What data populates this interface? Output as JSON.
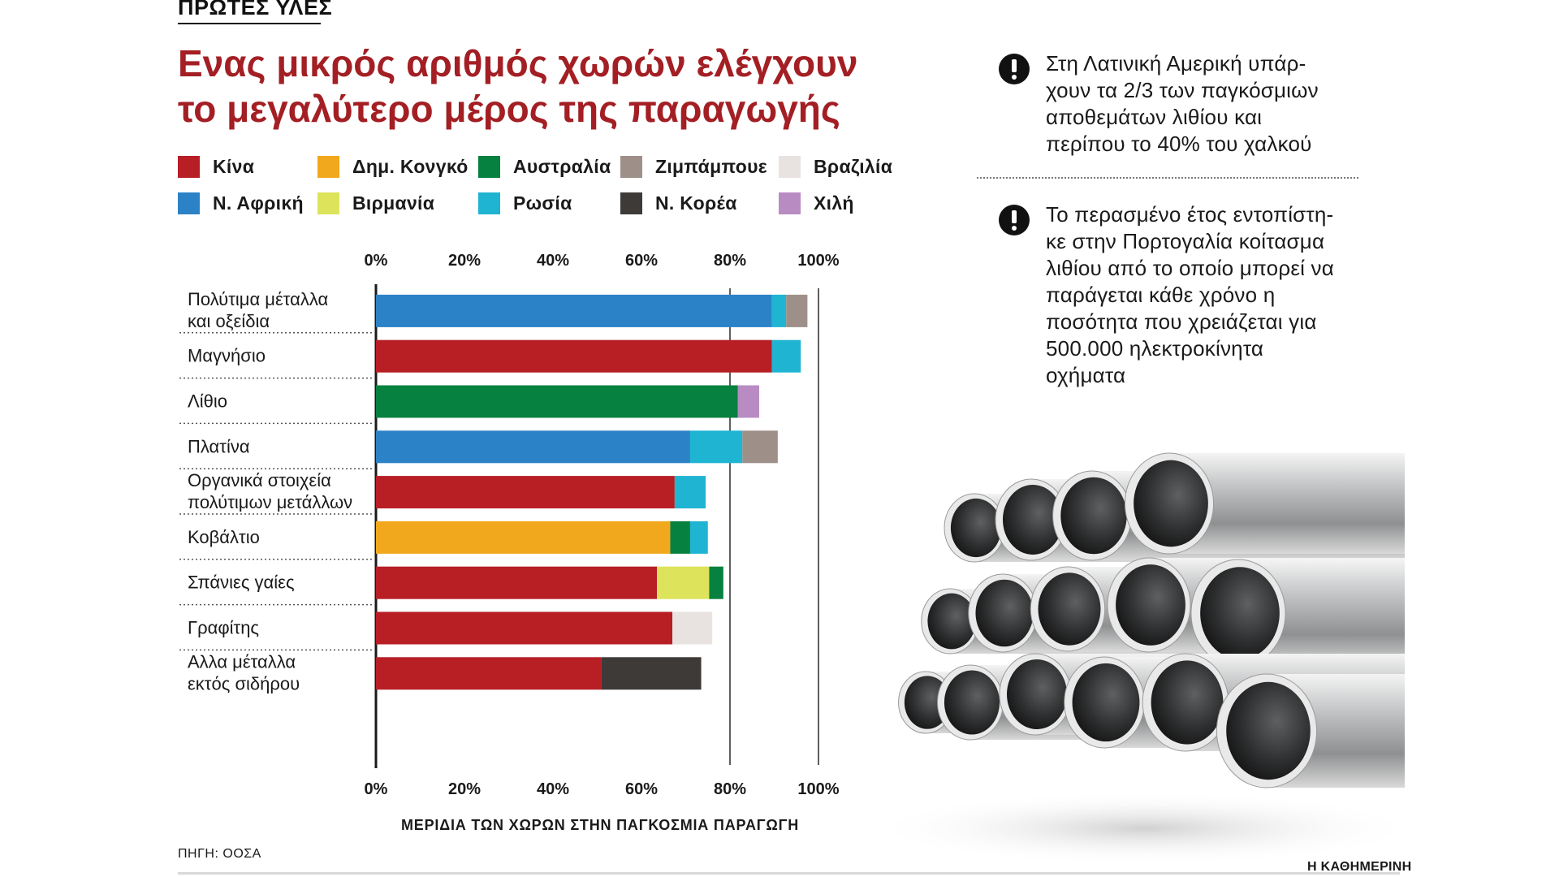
{
  "section_label": "ΠΡΩΤΕΣ ΥΛΕΣ",
  "headline": {
    "line1": "Ενας μικρός αριθμός χωρών ελέγχουν",
    "line2": "το μεγαλύτερο μέρος της παραγωγής"
  },
  "legend": [
    {
      "label": "Κίνα",
      "color": "#b71f25"
    },
    {
      "label": "Δημ. Κονγκό",
      "color": "#f2a81d"
    },
    {
      "label": "Αυστραλία",
      "color": "#07813f"
    },
    {
      "label": "Ζιμπάμπουε",
      "color": "#9e9089"
    },
    {
      "label": "Βραζιλία",
      "color": "#e8e3e1"
    },
    {
      "label": "Ν. Αφρική",
      "color": "#2c82c6"
    },
    {
      "label": "Βιρμανία",
      "color": "#dde35a"
    },
    {
      "label": "Ρωσία",
      "color": "#1fb4d2"
    },
    {
      "label": "Ν. Κορέα",
      "color": "#3d3a38"
    },
    {
      "label": "Χιλή",
      "color": "#b88cc3"
    }
  ],
  "chart_data": {
    "type": "bar",
    "orientation": "horizontal",
    "stacked": true,
    "xlabel": "ΜΕΡΙΔΙΑ ΤΩΝ ΧΩΡΩΝ ΣΤΗΝ ΠΑΓΚΟΣΜΙΑ ΠΑΡΑΓΩΓΗ",
    "xlim": [
      0,
      100
    ],
    "x_ticks": [
      "0%",
      "20%",
      "40%",
      "60%",
      "80%",
      "100%"
    ],
    "categories": [
      [
        "Πολύτιμα μέταλλα",
        "και οξείδια"
      ],
      [
        "Μαγνήσιο"
      ],
      [
        "Λίθιο"
      ],
      [
        "Πλατίνα"
      ],
      [
        "Οργανικά στοιχεία",
        "πολύτιμων μετάλλων"
      ],
      [
        "Κοβάλτιο"
      ],
      [
        "Σπάνιες γαίες"
      ],
      [
        "Γραφίτης"
      ],
      [
        "Αλλα μέταλλα",
        "εκτός σιδήρου"
      ]
    ],
    "segments": [
      [
        {
          "country": "Ν. Αφρική",
          "value": 89.5
        },
        {
          "country": "Ρωσία",
          "value": 3.2
        },
        {
          "country": "Ζιμπάμπουε",
          "value": 4.8
        }
      ],
      [
        {
          "country": "Κίνα",
          "value": 89.5
        },
        {
          "country": "Ρωσία",
          "value": 6.5
        }
      ],
      [
        {
          "country": "Αυστραλία",
          "value": 81.8
        },
        {
          "country": "Χιλή",
          "value": 4.8
        }
      ],
      [
        {
          "country": "Ν. Αφρική",
          "value": 71.0
        },
        {
          "country": "Ρωσία",
          "value": 11.8
        },
        {
          "country": "Ζιμπάμπουε",
          "value": 8.0
        }
      ],
      [
        {
          "country": "Κίνα",
          "value": 67.5
        },
        {
          "country": "Ρωσία",
          "value": 7.0
        }
      ],
      [
        {
          "country": "Δημ. Κονγκό",
          "value": 66.5
        },
        {
          "country": "Αυστραλία",
          "value": 4.5
        },
        {
          "country": "Ρωσία",
          "value": 4.0
        }
      ],
      [
        {
          "country": "Κίνα",
          "value": 63.5
        },
        {
          "country": "Βιρμανία",
          "value": 11.8
        },
        {
          "country": "Αυστραλία",
          "value": 3.2
        }
      ],
      [
        {
          "country": "Κίνα",
          "value": 67.0
        },
        {
          "country": "Βραζιλία",
          "value": 9.0
        }
      ],
      [
        {
          "country": "Κίνα",
          "value": 51.0
        },
        {
          "country": "Ν. Κορέα",
          "value": 22.5
        }
      ]
    ],
    "grid": "vertical lines at 80% and 100%"
  },
  "source": "ΠΗΓΗ: ΟΟΣΑ",
  "brand": "Η ΚΑΘΗΜΕΡΙΝΗ",
  "notes": [
    {
      "lines": [
        "Στη Λατινική Αμερική υπάρ-",
        "χουν τα 2/3 των παγκόσμιων",
        "αποθεμάτων λιθίου και",
        "περίπου το 40% του χαλκού"
      ]
    },
    {
      "lines": [
        "Το περασμένο έτος εντοπίστη-",
        "κε στην Πορτογαλία κοίτασμα",
        "λιθίου από το οποίο μπορεί να",
        "παράγεται κάθε χρόνο η",
        "ποσότητα που χρειάζεται για",
        "500.000 ηλεκτροκίνητα",
        "οχήματα"
      ]
    }
  ]
}
